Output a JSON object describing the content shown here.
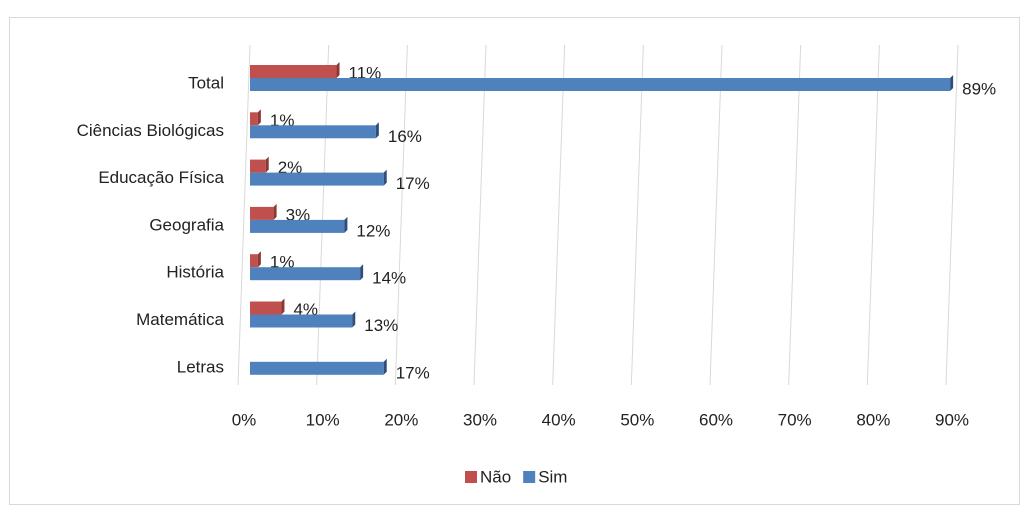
{
  "chart_data": {
    "type": "bar",
    "orientation": "horizontal",
    "categories": [
      "Total",
      "Ciências Biológicas",
      "Educação Física",
      "Geografia",
      "História",
      "Matemática",
      "Letras"
    ],
    "series": [
      {
        "name": "Não",
        "color": "#c0504d",
        "values": [
          11,
          1,
          2,
          3,
          1,
          4,
          null
        ],
        "value_labels": [
          "11%",
          "1%",
          "2%",
          "3%",
          "1%",
          "4%",
          null
        ]
      },
      {
        "name": "Sim",
        "color": "#4f81bd",
        "values": [
          89,
          16,
          17,
          12,
          14,
          13,
          17
        ],
        "value_labels": [
          "89%",
          "16%",
          "17%",
          "12%",
          "14%",
          "13%",
          "17%"
        ]
      }
    ],
    "xlim": [
      0,
      90
    ],
    "xticks": [
      {
        "value": 0,
        "label": "0%"
      },
      {
        "value": 10,
        "label": "10%"
      },
      {
        "value": 20,
        "label": "20%"
      },
      {
        "value": 30,
        "label": "30%"
      },
      {
        "value": 40,
        "label": "40%"
      },
      {
        "value": 50,
        "label": "50%"
      },
      {
        "value": 60,
        "label": "60%"
      },
      {
        "value": 70,
        "label": "70%"
      },
      {
        "value": 80,
        "label": "80%"
      },
      {
        "value": 90,
        "label": "90%"
      }
    ],
    "grid": true,
    "legend": "bottom"
  }
}
